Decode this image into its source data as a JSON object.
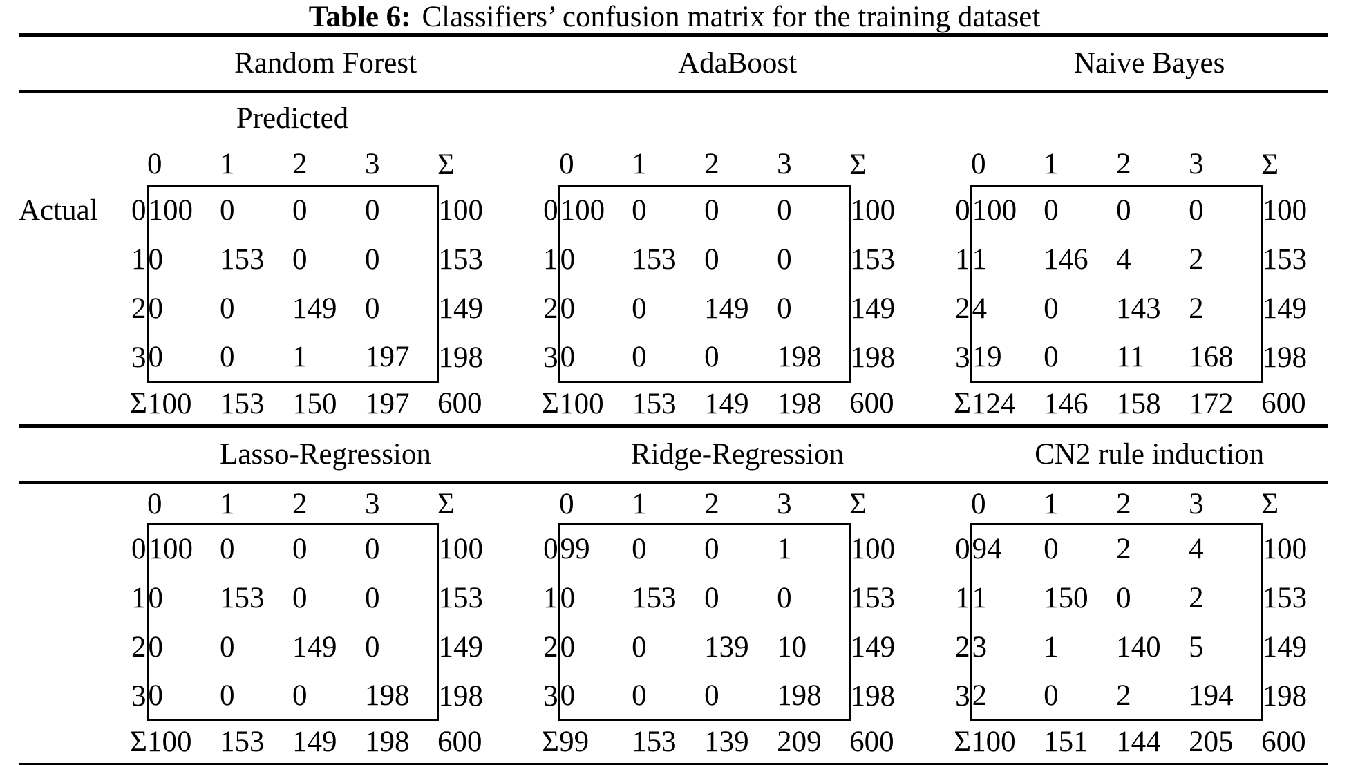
{
  "page": {
    "title_label": "Table 6:",
    "title_text": "Classifiers’ confusion matrix for the training dataset"
  },
  "labels": {
    "predicted": "Predicted",
    "actual": "Actual",
    "sum": "Σ"
  },
  "col_headers": [
    "0",
    "1",
    "2",
    "3"
  ],
  "row_headers": [
    "0",
    "1",
    "2",
    "3"
  ],
  "matrices": [
    {
      "name": "Random Forest",
      "rows": [
        [
          100,
          0,
          0,
          0
        ],
        [
          0,
          153,
          0,
          0
        ],
        [
          0,
          0,
          149,
          0
        ],
        [
          0,
          0,
          1,
          197
        ]
      ],
      "row_sums": [
        100,
        153,
        149,
        198
      ],
      "col_sums": [
        100,
        153,
        150,
        197
      ],
      "total": 600
    },
    {
      "name": "AdaBoost",
      "rows": [
        [
          100,
          0,
          0,
          0
        ],
        [
          0,
          153,
          0,
          0
        ],
        [
          0,
          0,
          149,
          0
        ],
        [
          0,
          0,
          0,
          198
        ]
      ],
      "row_sums": [
        100,
        153,
        149,
        198
      ],
      "col_sums": [
        100,
        153,
        149,
        198
      ],
      "total": 600
    },
    {
      "name": "Naive Bayes",
      "rows": [
        [
          100,
          0,
          0,
          0
        ],
        [
          1,
          146,
          4,
          2
        ],
        [
          4,
          0,
          143,
          2
        ],
        [
          19,
          0,
          11,
          168
        ]
      ],
      "row_sums": [
        100,
        153,
        149,
        198
      ],
      "col_sums": [
        124,
        146,
        158,
        172
      ],
      "total": 600
    },
    {
      "name": "Lasso-Regression",
      "rows": [
        [
          100,
          0,
          0,
          0
        ],
        [
          0,
          153,
          0,
          0
        ],
        [
          0,
          0,
          149,
          0
        ],
        [
          0,
          0,
          0,
          198
        ]
      ],
      "row_sums": [
        100,
        153,
        149,
        198
      ],
      "col_sums": [
        100,
        153,
        149,
        198
      ],
      "total": 600
    },
    {
      "name": "Ridge-Regression",
      "rows": [
        [
          99,
          0,
          0,
          1
        ],
        [
          0,
          153,
          0,
          0
        ],
        [
          0,
          0,
          139,
          10
        ],
        [
          0,
          0,
          0,
          198
        ]
      ],
      "row_sums": [
        100,
        153,
        149,
        198
      ],
      "col_sums": [
        99,
        153,
        139,
        209
      ],
      "total": 600
    },
    {
      "name": "CN2 rule induction",
      "rows": [
        [
          94,
          0,
          2,
          4
        ],
        [
          1,
          150,
          0,
          2
        ],
        [
          3,
          1,
          140,
          5
        ],
        [
          2,
          0,
          2,
          194
        ]
      ],
      "row_sums": [
        100,
        153,
        149,
        198
      ],
      "col_sums": [
        100,
        151,
        144,
        205
      ],
      "total": 600
    }
  ]
}
